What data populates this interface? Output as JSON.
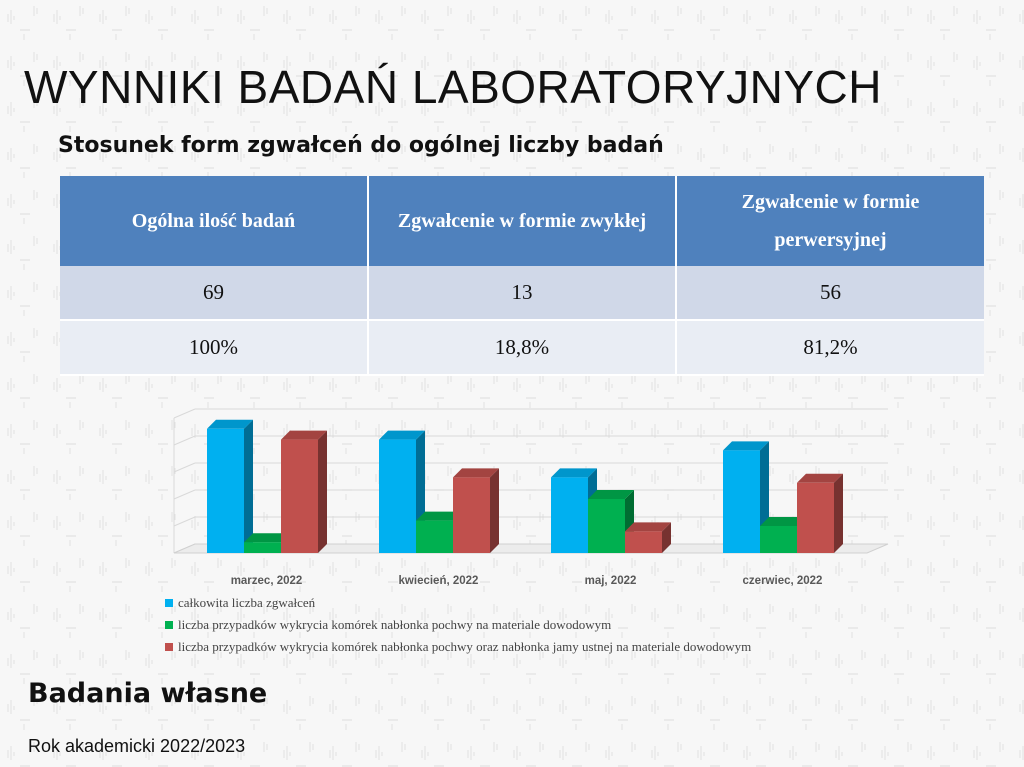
{
  "slide": {
    "title": "WYNNIKI BADAŃ LABORATORYJNYCH",
    "subtitle": "Stosunek form zgwałceń do ogólnej liczby badań",
    "footer_title": "Badania własne",
    "footer_subtitle": "Rok akademicki 2022/2023"
  },
  "table": {
    "headers": [
      "Ogólna ilość badań",
      "Zgwałcenie w formie zwykłej",
      "Zgwałcenie w formie perwersyjnej"
    ],
    "rows": [
      [
        "69",
        "13",
        "56"
      ],
      [
        "100%",
        "18,8%",
        "81,2%"
      ]
    ]
  },
  "chart_data": {
    "type": "bar",
    "categories": [
      "marzec, 2022",
      "kwiecień, 2022",
      "maj, 2022",
      "czerwiec, 2022"
    ],
    "series": [
      {
        "name": "całkowita liczba zgwałceń",
        "color": "#00b0f0",
        "values": [
          23,
          21,
          14,
          19
        ]
      },
      {
        "name": "liczba przypadków wykrycia komórek nabłonka pochwy na materiale dowodowym",
        "color": "#00b050",
        "values": [
          2,
          6,
          10,
          5
        ]
      },
      {
        "name": "liczba przypadków wykrycia komórek nabłonka pochwy oraz nabłonka jamy ustnej na materiale dowodowym",
        "color": "#c0504d",
        "values": [
          21,
          14,
          4,
          13
        ]
      }
    ],
    "ylim": [
      0,
      25
    ],
    "grid": true,
    "legend_position": "bottom",
    "style": "3d-clustered-columns"
  }
}
